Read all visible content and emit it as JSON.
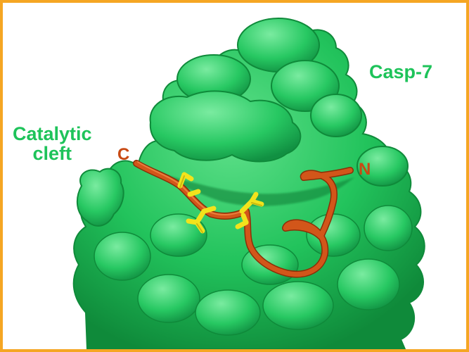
{
  "labels": {
    "protein": "Casp-7",
    "cleft_line1": "Catalytic",
    "cleft_line2": "cleft",
    "c_terminus": "C",
    "n_terminus": "N"
  },
  "colors": {
    "frame_border": "#f5a623",
    "surface": "#22c35c",
    "surface_shadow": "#0f8a3a",
    "surface_highlight": "#63e08d",
    "label_green": "#1ec35a",
    "backbone": "#d2561a",
    "backbone_label": "#c84a14",
    "sidechain": "#f2e31c"
  }
}
